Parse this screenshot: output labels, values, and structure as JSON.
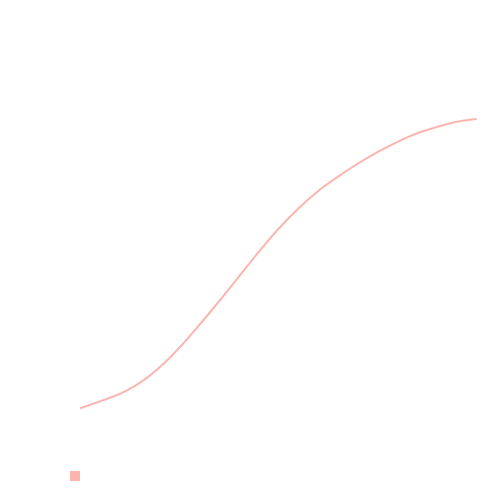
{
  "chart_data": {
    "type": "line",
    "title": "",
    "xlabel": "",
    "ylabel": "",
    "grid": false,
    "axes_visible": false,
    "legend_placement": "bottom-left",
    "x": [
      0,
      0.05,
      0.1,
      0.15,
      0.2,
      0.25,
      0.3,
      0.35,
      0.4,
      0.45,
      0.5,
      0.55,
      0.6,
      0.65,
      0.7,
      0.75,
      0.8,
      0.85,
      0.9,
      0.95,
      1.0
    ],
    "xlim": [
      0,
      1
    ],
    "ylim": [
      0,
      1
    ],
    "series": [
      {
        "name": "",
        "color": "#fbb4ae",
        "values": [
          0.0,
          0.024,
          0.05,
          0.088,
          0.142,
          0.21,
          0.288,
          0.37,
          0.455,
          0.54,
          0.62,
          0.69,
          0.75,
          0.8,
          0.845,
          0.885,
          0.92,
          0.95,
          0.972,
          0.99,
          1.0
        ]
      }
    ]
  }
}
